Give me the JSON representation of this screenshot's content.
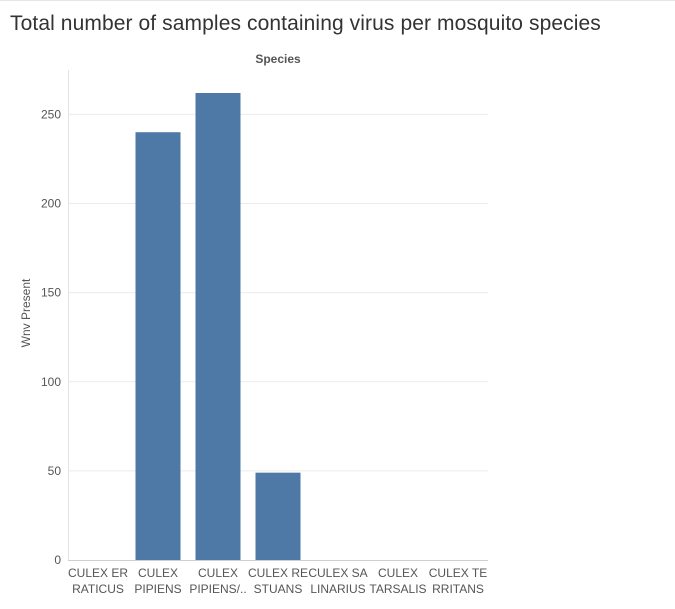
{
  "title": "Total number of samples containing virus per mosquito species",
  "chart_data": {
    "type": "bar",
    "title": "Total number of samples containing virus per mosquito species",
    "xlabel": "Species",
    "ylabel": "Wnv Present",
    "ylim": [
      0,
      262
    ],
    "yticks": [
      0,
      50,
      100,
      150,
      200,
      250
    ],
    "categories": [
      [
        "CULEX ER",
        "RATICUS"
      ],
      [
        "CULEX",
        "PIPIENS"
      ],
      [
        "CULEX",
        "PIPIENS/.."
      ],
      [
        "CULEX RE",
        "STUANS"
      ],
      [
        "CULEX SA",
        "LINARIUS"
      ],
      [
        "CULEX",
        "TARSALIS"
      ],
      [
        "CULEX TE",
        "RRITANS"
      ]
    ],
    "values": [
      0,
      240,
      262,
      49,
      0,
      0,
      0
    ],
    "bar_color": "#4e79a7",
    "grid": true
  }
}
